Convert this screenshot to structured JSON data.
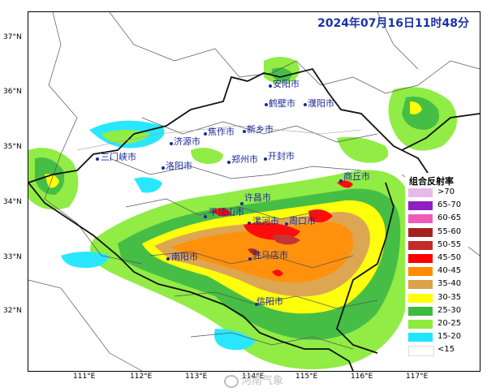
{
  "timestamp": "2024年07月16日11时48分",
  "latitude_labels": [
    "37°N",
    "36°N",
    "35°N",
    "34°N",
    "33°N",
    "32°N"
  ],
  "longitude_labels": [
    "111°E",
    "112°E",
    "113°E",
    "114°E",
    "115°E",
    "116°E",
    "117°E"
  ],
  "cities": [
    {
      "name": "安阳市"
    },
    {
      "name": "鹤壁市"
    },
    {
      "name": "濮阳市"
    },
    {
      "name": "焦作市"
    },
    {
      "name": "新乡市"
    },
    {
      "name": "济源市"
    },
    {
      "name": "三门峡市"
    },
    {
      "name": "郑州市"
    },
    {
      "name": "开封市"
    },
    {
      "name": "洛阳市"
    },
    {
      "name": "商丘市"
    },
    {
      "name": "许昌市"
    },
    {
      "name": "平顶山市"
    },
    {
      "name": "漯河市"
    },
    {
      "name": "周口市"
    },
    {
      "name": "南阳市"
    },
    {
      "name": "驻马店市"
    },
    {
      "name": "信阳市"
    }
  ],
  "legend": {
    "title": "组合反射率",
    "items": [
      {
        "label": ">70",
        "color": "#e7b9e8"
      },
      {
        "label": "65-70",
        "color": "#8f1fc2"
      },
      {
        "label": "60-65",
        "color": "#f05bb8"
      },
      {
        "label": "55-60",
        "color": "#a4231e"
      },
      {
        "label": "50-55",
        "color": "#c42a2a"
      },
      {
        "label": "45-50",
        "color": "#ff0000"
      },
      {
        "label": "40-45",
        "color": "#ff8c00"
      },
      {
        "label": "35-40",
        "color": "#dca24a"
      },
      {
        "label": "30-35",
        "color": "#ffff00"
      },
      {
        "label": "25-30",
        "color": "#3dbb3d"
      },
      {
        "label": "20-25",
        "color": "#8cec3c"
      },
      {
        "label": "15-20",
        "color": "#1ee6ff"
      },
      {
        "label": "<15",
        "color": "#ffffff"
      }
    ]
  },
  "watermark": "河南气象"
}
